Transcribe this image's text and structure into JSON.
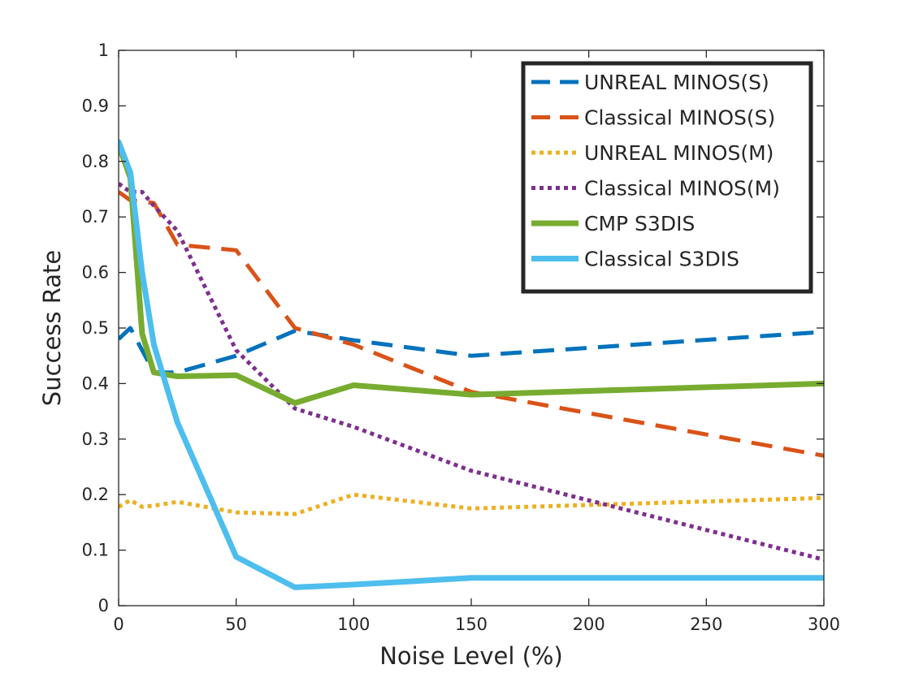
{
  "chart_data": {
    "type": "line",
    "xlabel": "Noise Level (%)",
    "ylabel": "Success Rate",
    "xlim": [
      0,
      300
    ],
    "ylim": [
      0,
      1
    ],
    "xticks": [
      0,
      50,
      100,
      150,
      200,
      250,
      300
    ],
    "xtick_labels": [
      "0",
      "50",
      "100",
      "150",
      "200",
      "250",
      "300"
    ],
    "yticks": [
      0,
      0.1,
      0.2,
      0.3,
      0.4,
      0.5,
      0.6,
      0.7,
      0.8,
      0.9,
      1
    ],
    "ytick_labels": [
      "0",
      "0.1",
      "0.2",
      "0.3",
      "0.4",
      "0.5",
      "0.6",
      "0.7",
      "0.8",
      "0.9",
      "1"
    ],
    "grid": false,
    "legend_position": "top-right",
    "series": [
      {
        "name": "UNREAL MINOS(S)",
        "color": "#0072BD",
        "style": "dashed",
        "x": [
          0,
          5,
          10,
          15,
          25,
          50,
          75,
          100,
          150,
          300
        ],
        "y": [
          0.48,
          0.5,
          0.46,
          0.42,
          0.42,
          0.45,
          0.495,
          0.478,
          0.45,
          0.493
        ]
      },
      {
        "name": "Classical MINOS(S)",
        "color": "#D95319",
        "style": "dashed",
        "x": [
          0,
          5,
          10,
          15,
          25,
          50,
          75,
          100,
          150,
          300
        ],
        "y": [
          0.745,
          0.73,
          0.728,
          0.725,
          0.65,
          0.64,
          0.5,
          0.47,
          0.385,
          0.27
        ]
      },
      {
        "name": "UNREAL MINOS(M)",
        "color": "#EDB120",
        "style": "dotted",
        "x": [
          0,
          5,
          10,
          15,
          25,
          50,
          75,
          100,
          150,
          300
        ],
        "y": [
          0.178,
          0.19,
          0.178,
          0.18,
          0.187,
          0.168,
          0.165,
          0.2,
          0.175,
          0.194
        ]
      },
      {
        "name": "Classical MINOS(M)",
        "color": "#7E2F8E",
        "style": "dotted",
        "x": [
          0,
          5,
          10,
          15,
          25,
          50,
          75,
          100,
          150,
          300
        ],
        "y": [
          0.76,
          0.745,
          0.745,
          0.72,
          0.675,
          0.46,
          0.355,
          0.322,
          0.243,
          0.083
        ]
      },
      {
        "name": "CMP S3DIS",
        "color": "#77AC30",
        "style": "solid",
        "x": [
          0,
          5,
          10,
          15,
          25,
          50,
          75,
          100,
          150,
          300
        ],
        "y": [
          0.83,
          0.77,
          0.49,
          0.42,
          0.413,
          0.415,
          0.365,
          0.397,
          0.38,
          0.4
        ]
      },
      {
        "name": "Classical S3DIS",
        "color": "#4DBEEE",
        "style": "solid",
        "x": [
          0,
          5,
          10,
          15,
          25,
          50,
          75,
          100,
          150,
          300
        ],
        "y": [
          0.835,
          0.78,
          0.6,
          0.47,
          0.33,
          0.088,
          0.033,
          0.038,
          0.05,
          0.05
        ]
      }
    ]
  }
}
